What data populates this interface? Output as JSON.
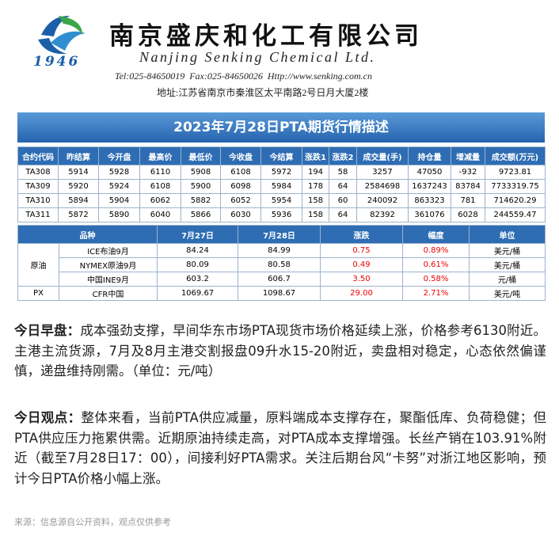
{
  "header": {
    "logo_year": "1946",
    "company_cn": "南京盛庆和化工有限公司",
    "company_en": "Nanjing Senking Chemical Ltd.",
    "contact": "Tel:025-84650019  Fax:025-84650026  Http://www.senking.com.cn",
    "address": "地址:江苏省南京市秦淮区太平南路2号日月大厦2楼"
  },
  "title": "2023年7月28日PTA期货行情描述",
  "futures_table": {
    "columns": [
      "合约代码",
      "昨结算",
      "今开盘",
      "最高价",
      "最低价",
      "今收盘",
      "今结算",
      "涨跌1",
      "涨跌2",
      "成交量(手)",
      "持仓量",
      "增减量",
      "成交额(万元)"
    ],
    "rows": [
      [
        "TA308",
        "5914",
        "5928",
        "6110",
        "5908",
        "6108",
        "5972",
        "194",
        "58",
        "3257",
        "47050",
        "-932",
        "9723.81"
      ],
      [
        "TA309",
        "5920",
        "5924",
        "6108",
        "5900",
        "6098",
        "5984",
        "178",
        "64",
        "2584698",
        "1637243",
        "83784",
        "7733319.75"
      ],
      [
        "TA310",
        "5894",
        "5904",
        "6062",
        "5882",
        "6052",
        "5954",
        "158",
        "60",
        "240092",
        "863323",
        "781",
        "714620.29"
      ],
      [
        "TA311",
        "5872",
        "5890",
        "6040",
        "5866",
        "6030",
        "5936",
        "158",
        "64",
        "82392",
        "361076",
        "6028",
        "244559.47"
      ]
    ]
  },
  "raw_table": {
    "columns": [
      "品种",
      "7月27日",
      "7月28日",
      "涨跌",
      "幅度",
      "单位"
    ],
    "groups": [
      {
        "name": "原油",
        "rows": [
          [
            "ICE布油9月",
            "84.24",
            "84.99",
            "0.75",
            "0.89%",
            "美元/桶"
          ],
          [
            "NYMEX原油9月",
            "80.09",
            "80.58",
            "0.49",
            "0.61%",
            "美元/桶"
          ],
          [
            "中国INE9月",
            "603.2",
            "606.7",
            "3.50",
            "0.58%",
            "元/桶"
          ]
        ]
      },
      {
        "name": "PX",
        "rows": [
          [
            "CFR中国",
            "1069.67",
            "1098.67",
            "29.00",
            "2.71%",
            "美元/吨"
          ]
        ]
      }
    ]
  },
  "paragraphs": [
    {
      "label": "今日早盘：",
      "text": "成本强劲支撑，早间华东市场PTA现货市场价格延续上涨，价格参考6130附近。主港主流货源，7月及8月主港交割报盘09升水15-20附近，卖盘相对稳定，心态依然偏谨慎，递盘维持刚需。（单位：元/吨）"
    },
    {
      "label": "今日观点：",
      "text": "整体来看，当前PTA供应减量，原料端成本支撑存在，聚酯低库、负荷稳健；但PTA供应压力拖累供需。近期原油持续走高，对PTA成本支撑增强。长丝产销在103.91%附近（截至7月28日17：00），间接利好PTA需求。关注后期台风“卡努”对浙江地区影响，预计今日PTA价格小幅上涨。"
    }
  ],
  "footer": "来源：信息源自公开资料，观点仅供参考"
}
